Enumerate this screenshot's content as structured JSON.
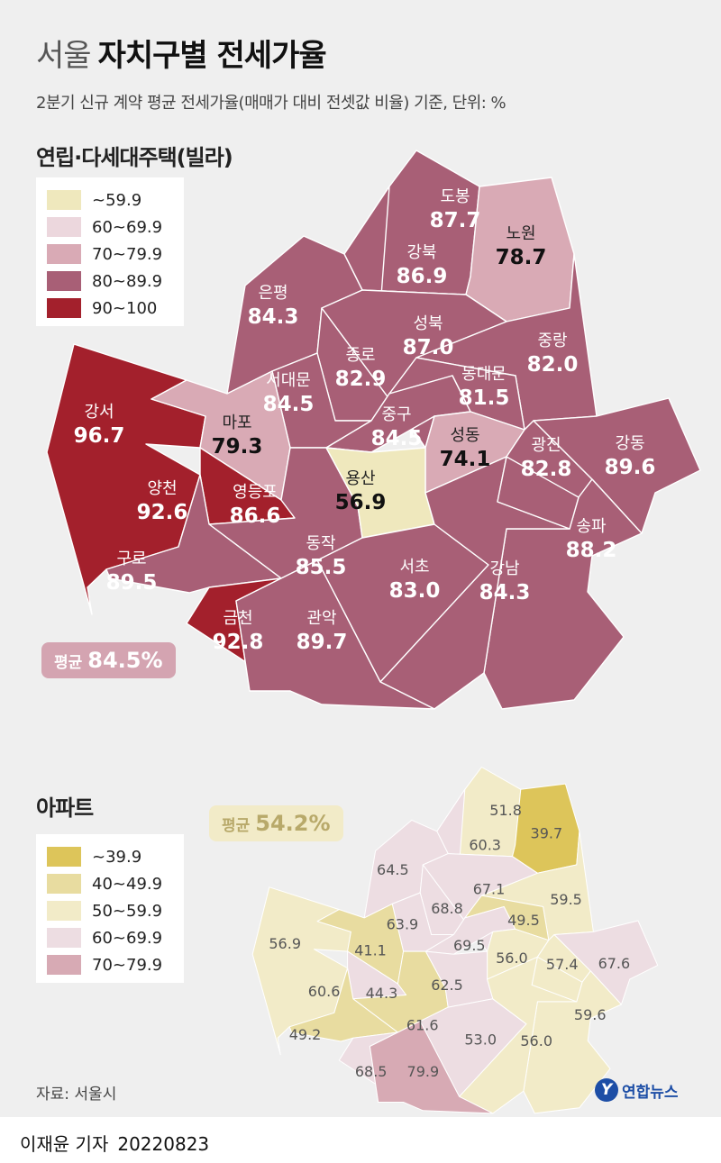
{
  "title": {
    "light": "서울",
    "bold": "자치구별 전세가율"
  },
  "subtitle": "2분기 신규 계약 평균 전세가율(매매가 대비 전셋값 비율) 기준, 단위: %",
  "villa": {
    "section_title": "연립·다세대주택(빌라)",
    "legend": [
      {
        "label": "~59.9",
        "color": "#efe8bd"
      },
      {
        "label": "60~69.9",
        "color": "#ecd7dd"
      },
      {
        "label": "70~79.9",
        "color": "#d9aab5"
      },
      {
        "label": "80~89.9",
        "color": "#a85f76"
      },
      {
        "label": "90~100",
        "color": "#a3202c"
      }
    ],
    "average": {
      "label": "평균",
      "value": "84.5%"
    },
    "districts": [
      {
        "name": "도봉",
        "value": "87.7",
        "color": "#a85f76"
      },
      {
        "name": "노원",
        "value": "78.7",
        "color": "#d9aab5"
      },
      {
        "name": "강북",
        "value": "86.9",
        "color": "#a85f76"
      },
      {
        "name": "은평",
        "value": "84.3",
        "color": "#a85f76"
      },
      {
        "name": "성북",
        "value": "87.0",
        "color": "#a85f76"
      },
      {
        "name": "중랑",
        "value": "82.0",
        "color": "#a85f76"
      },
      {
        "name": "종로",
        "value": "82.9",
        "color": "#a85f76"
      },
      {
        "name": "서대문",
        "value": "84.5",
        "color": "#a85f76"
      },
      {
        "name": "동대문",
        "value": "81.5",
        "color": "#a85f76"
      },
      {
        "name": "강서",
        "value": "96.7",
        "color": "#a3202c"
      },
      {
        "name": "마포",
        "value": "79.3",
        "color": "#d9aab5"
      },
      {
        "name": "중구",
        "value": "84.5",
        "color": "#a85f76"
      },
      {
        "name": "성동",
        "value": "74.1",
        "color": "#d9aab5"
      },
      {
        "name": "광진",
        "value": "82.8",
        "color": "#a85f76"
      },
      {
        "name": "강동",
        "value": "89.6",
        "color": "#a85f76"
      },
      {
        "name": "양천",
        "value": "92.6",
        "color": "#a3202c"
      },
      {
        "name": "영등포",
        "value": "86.6",
        "color": "#a85f76"
      },
      {
        "name": "용산",
        "value": "56.9",
        "color": "#efe8bd"
      },
      {
        "name": "송파",
        "value": "88.2",
        "color": "#a85f76"
      },
      {
        "name": "구로",
        "value": "89.5",
        "color": "#a85f76"
      },
      {
        "name": "동작",
        "value": "85.5",
        "color": "#a85f76"
      },
      {
        "name": "서초",
        "value": "83.0",
        "color": "#a85f76"
      },
      {
        "name": "강남",
        "value": "84.3",
        "color": "#a85f76"
      },
      {
        "name": "금천",
        "value": "92.8",
        "color": "#a3202c"
      },
      {
        "name": "관악",
        "value": "89.7",
        "color": "#a85f76"
      }
    ]
  },
  "apt": {
    "section_title": "아파트",
    "legend": [
      {
        "label": "~39.9",
        "color": "#ddc55a"
      },
      {
        "label": "40~49.9",
        "color": "#e8dca0"
      },
      {
        "label": "50~59.9",
        "color": "#f2ebc8"
      },
      {
        "label": "60~69.9",
        "color": "#eddde2"
      },
      {
        "label": "70~79.9",
        "color": "#d7aab4"
      }
    ],
    "average": {
      "label": "평균",
      "value": "54.2%"
    },
    "districts": [
      {
        "value": "51.8",
        "color": "#f2ebc8"
      },
      {
        "value": "39.7",
        "color": "#ddc55a"
      },
      {
        "value": "60.3",
        "color": "#eddde2"
      },
      {
        "value": "64.5",
        "color": "#eddde2"
      },
      {
        "value": "67.1",
        "color": "#eddde2"
      },
      {
        "value": "59.5",
        "color": "#f2ebc8"
      },
      {
        "value": "68.8",
        "color": "#eddde2"
      },
      {
        "value": "63.9",
        "color": "#eddde2"
      },
      {
        "value": "49.5",
        "color": "#e8dca0"
      },
      {
        "value": "56.9",
        "color": "#f2ebc8"
      },
      {
        "value": "41.1",
        "color": "#e8dca0"
      },
      {
        "value": "69.5",
        "color": "#eddde2"
      },
      {
        "value": "56.0",
        "color": "#f2ebc8"
      },
      {
        "value": "57.4",
        "color": "#f2ebc8"
      },
      {
        "value": "67.6",
        "color": "#eddde2"
      },
      {
        "value": "60.6",
        "color": "#eddde2"
      },
      {
        "value": "44.3",
        "color": "#e8dca0"
      },
      {
        "value": "62.5",
        "color": "#eddde2"
      },
      {
        "value": "59.6",
        "color": "#f2ebc8"
      },
      {
        "value": "49.2",
        "color": "#e8dca0"
      },
      {
        "value": "61.6",
        "color": "#eddde2"
      },
      {
        "value": "53.0",
        "color": "#f2ebc8"
      },
      {
        "value": "56.0",
        "color": "#f2ebc8"
      },
      {
        "value": "68.5",
        "color": "#eddde2"
      },
      {
        "value": "79.9",
        "color": "#d7aab4"
      }
    ]
  },
  "source": "자료: 서울시",
  "logo": {
    "mark": "Y",
    "text": "연합뉴스"
  },
  "byline": {
    "author": "이재윤 기자",
    "date": "20220823"
  }
}
